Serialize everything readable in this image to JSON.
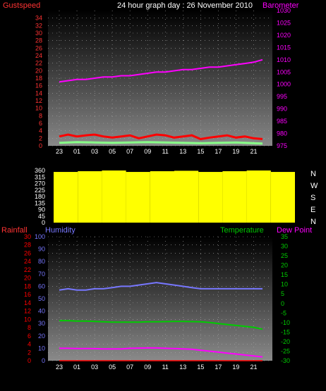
{
  "title": "24 hour graph day : 26 November 2010",
  "colors": {
    "gust": "#ff0000",
    "wind": "#88ff88",
    "baro": "#ff00ff",
    "humid": "#7777ff",
    "temp": "#00cc00",
    "dew": "#ff00ff",
    "rain": "#ff0000",
    "dir": "#ffff00",
    "axis_left": "#ff3333",
    "axis_right_baro": "#ff00ff"
  },
  "chart_data": [
    {
      "type": "line",
      "left_axis": {
        "label": "Gustspeed",
        "ticks": [
          "0",
          "2",
          "4",
          "6",
          "8",
          "10",
          "12",
          "14",
          "16",
          "18",
          "20",
          "22",
          "24",
          "26",
          "28",
          "30",
          "32",
          "34"
        ],
        "range": [
          0,
          36
        ]
      },
      "right_axis": {
        "label": "Barometer",
        "ticks": [
          "975",
          "980",
          "985",
          "990",
          "995",
          "1000",
          "1005",
          "1010",
          "1015",
          "1020",
          "1025",
          "1030"
        ],
        "range": [
          975,
          1030
        ]
      },
      "x_ticks": [
        "23",
        "01",
        "03",
        "05",
        "07",
        "09",
        "11",
        "13",
        "15",
        "17",
        "19",
        "21"
      ],
      "series": [
        {
          "key": "gust",
          "x": [
            0,
            1,
            2,
            3,
            4,
            5,
            6,
            7,
            8,
            9,
            10,
            11,
            12,
            13,
            14,
            15,
            16,
            17,
            18,
            19,
            20,
            21,
            22,
            23
          ],
          "values": [
            2.5,
            3,
            2.5,
            2.8,
            3,
            2.5,
            2.2,
            2.5,
            2.8,
            2,
            2.5,
            3,
            2.8,
            2.2,
            2.5,
            2.8,
            1.8,
            2.2,
            2.5,
            2.8,
            2.2,
            2.5,
            2,
            1.8
          ]
        },
        {
          "key": "wind",
          "x": [
            0,
            2,
            4,
            6,
            8,
            10,
            12,
            14,
            16,
            18,
            20,
            22,
            23
          ],
          "values": [
            0.8,
            1,
            0.9,
            0.8,
            0.9,
            1,
            0.9,
            0.8,
            0.7,
            0.8,
            0.9,
            0.7,
            0.6
          ]
        },
        {
          "key": "baro",
          "x": [
            0,
            1,
            2,
            3,
            4,
            5,
            6,
            7,
            8,
            9,
            10,
            11,
            12,
            13,
            14,
            15,
            16,
            17,
            18,
            19,
            20,
            21,
            22,
            23
          ],
          "values": [
            1001,
            1001.5,
            1002,
            1002,
            1002.5,
            1003,
            1003,
            1003.5,
            1003.5,
            1004,
            1004.5,
            1005,
            1005,
            1005.5,
            1006,
            1006,
            1006.5,
            1007,
            1007,
            1007.5,
            1008,
            1008.5,
            1009,
            1010
          ]
        }
      ]
    },
    {
      "type": "bar",
      "left_axis": {
        "ticks": [
          "0",
          "45",
          "90",
          "135",
          "180",
          "225",
          "270",
          "315",
          "360"
        ],
        "range": [
          0,
          360
        ]
      },
      "right_labels": [
        "N",
        "W",
        "S",
        "E",
        "N"
      ],
      "series": [
        {
          "key": "direction",
          "note_values_deg": [
            350,
            355,
            360,
            350,
            355,
            358,
            350,
            355,
            360,
            350
          ]
        }
      ]
    },
    {
      "type": "line",
      "rain_axis": {
        "label": "Rainfall",
        "ticks": [
          "0",
          "2",
          "4",
          "6",
          "8",
          "10",
          "12",
          "14",
          "16",
          "18",
          "20",
          "22",
          "24",
          "26",
          "28",
          "30"
        ],
        "range": [
          0,
          30
        ]
      },
      "humid_axis": {
        "label": "Humidity",
        "ticks": [
          "0",
          "10",
          "20",
          "30",
          "40",
          "50",
          "60",
          "70",
          "80",
          "90",
          "100"
        ],
        "range": [
          0,
          100
        ]
      },
      "temp_axis": {
        "label": "Temperature",
        "ticks": [
          "-30",
          "-25",
          "-20",
          "-15",
          "-10",
          "-5",
          "0",
          "5",
          "10",
          "15",
          "20",
          "25",
          "30",
          "35"
        ],
        "range": [
          -30,
          35
        ]
      },
      "dew_label": "Dew Point",
      "x_ticks": [
        "23",
        "01",
        "03",
        "05",
        "07",
        "09",
        "11",
        "13",
        "15",
        "17",
        "19",
        "21"
      ],
      "series": [
        {
          "key": "humid",
          "x": [
            0,
            1,
            2,
            3,
            4,
            5,
            6,
            7,
            8,
            9,
            10,
            11,
            12,
            13,
            14,
            15,
            16,
            17,
            18,
            19,
            20,
            21,
            22,
            23
          ],
          "values": [
            57,
            58,
            57,
            57,
            58,
            58,
            59,
            60,
            60,
            61,
            62,
            63,
            62,
            61,
            60,
            59,
            58,
            58,
            58,
            58,
            58,
            58,
            58,
            58
          ]
        },
        {
          "key": "temp",
          "x": [
            0,
            1,
            2,
            3,
            4,
            5,
            6,
            7,
            8,
            9,
            10,
            11,
            12,
            13,
            14,
            15,
            16,
            17,
            18,
            19,
            20,
            21,
            22,
            23
          ],
          "values": [
            -9,
            -9,
            -9.2,
            -9.2,
            -9.4,
            -9.6,
            -9.8,
            -9.8,
            -9.8,
            -9.8,
            -9.6,
            -9.6,
            -9.5,
            -9.4,
            -9.4,
            -9.5,
            -9.6,
            -10,
            -10.5,
            -11,
            -11.5,
            -12,
            -12.5,
            -13.5
          ]
        },
        {
          "key": "dew",
          "x": [
            0,
            1,
            2,
            3,
            4,
            5,
            6,
            7,
            8,
            9,
            10,
            11,
            12,
            13,
            14,
            15,
            16,
            17,
            18,
            19,
            20,
            21,
            22,
            23
          ],
          "values": [
            -23.5,
            -23.5,
            -23.6,
            -23.6,
            -23.7,
            -23.8,
            -23.8,
            -23.8,
            -23.5,
            -23.4,
            -23.3,
            -23.3,
            -23.5,
            -23.6,
            -23.8,
            -24,
            -24.5,
            -25,
            -25.5,
            -26,
            -26.5,
            -27,
            -27.5,
            -28
          ]
        },
        {
          "key": "rain",
          "x": [
            0,
            23
          ],
          "values": [
            0,
            0
          ]
        }
      ]
    }
  ]
}
